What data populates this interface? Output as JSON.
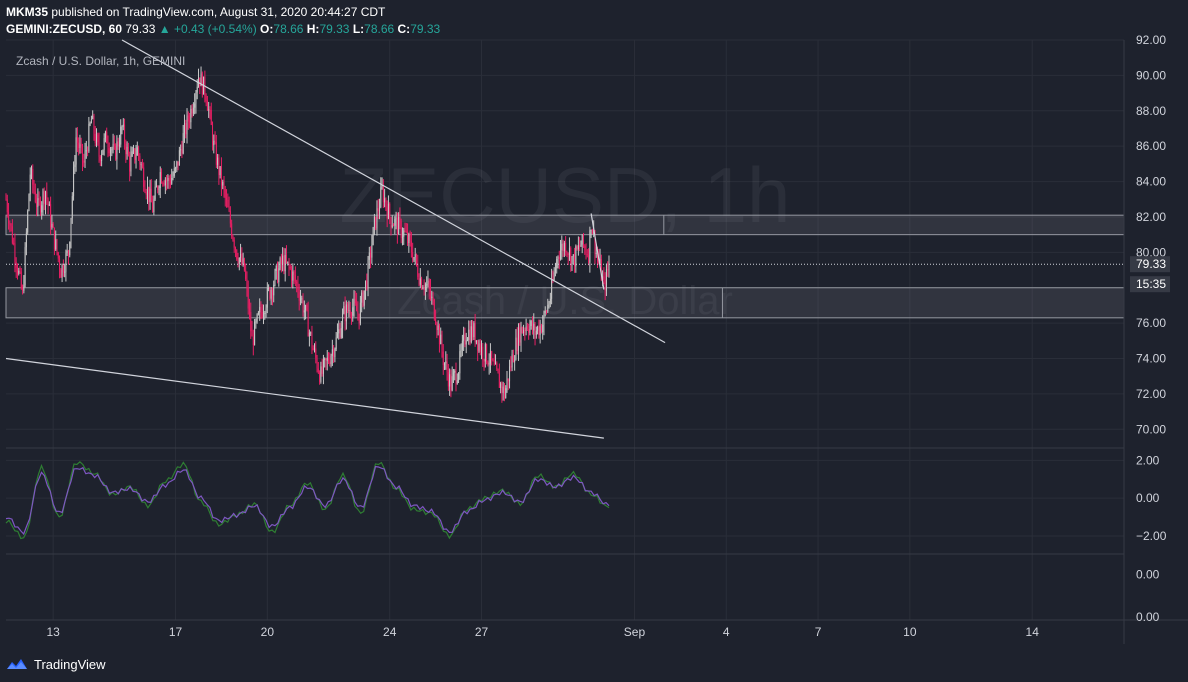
{
  "header": {
    "author": "MKM35",
    "published_text": "published on TradingView.com, August 31, 2020 20:44:27 CDT",
    "symbol": "GEMINI:ZECUSD, 60",
    "last": "79.33",
    "change": "+0.43 (+0.54%)",
    "open_label": "O:",
    "open": "78.66",
    "high_label": "H:",
    "high": "79.33",
    "low_label": "L:",
    "low": "78.66",
    "close_label": "C:",
    "close": "79.33"
  },
  "footer": {
    "brand": "TradingView"
  },
  "colors": {
    "background": "#1e222d",
    "grid": "#2a2e39",
    "up": "#26a69a",
    "down": "#ef5350",
    "candle_up": "#c8c8c8",
    "candle_down": "#e91e63",
    "trendline": "#d1d4dc",
    "stoch_k": "#2e7d32",
    "stoch_d": "#7e57c2"
  },
  "chart_data": [
    {
      "type": "candlestick",
      "title": "Zcash / U.S. Dollar, 1h, GEMINI",
      "watermark_symbol": "ZECUSD, 1h",
      "watermark_name": "Zcash / U.S. Dollar",
      "ylim": [
        69.0,
        92.0
      ],
      "y_ticks": [
        "92.00",
        "90.00",
        "88.00",
        "86.00",
        "84.00",
        "82.00",
        "80.00",
        "78.00",
        "76.00",
        "74.00",
        "72.00",
        "70.00"
      ],
      "x_ticks": [
        "13",
        "17",
        "20",
        "24",
        "27",
        "Sep",
        "4",
        "7",
        "10",
        "14"
      ],
      "x_range": [
        "Aug 11 11:00",
        "Sep 17 00:00"
      ],
      "last_price_label": "79.33",
      "countdown_label": "15:35",
      "grid": true,
      "resistance_zone": [
        81.0,
        82.1
      ],
      "support_zone": [
        76.3,
        78.0
      ],
      "trendlines": [
        {
          "from": [
            "Aug 15 06:00",
            92.0
          ],
          "to": [
            "Sep 02 00:00",
            74.9
          ]
        },
        {
          "from": [
            "Aug 11 11:00",
            74.0
          ],
          "to": [
            "Aug 31 00:00",
            69.5
          ]
        },
        {
          "from": [
            "Aug 30 14:00",
            82.2
          ],
          "to": [
            "Aug 31 00:00",
            77.9
          ]
        }
      ],
      "price_path": [
        [
          "Aug 11 11:00",
          83.0
        ],
        [
          "Aug 11 18:00",
          80.0
        ],
        [
          "Aug 12 00:00",
          77.5
        ],
        [
          "Aug 12 06:00",
          84.5
        ],
        [
          "Aug 12 12:00",
          82.5
        ],
        [
          "Aug 12 18:00",
          83.5
        ],
        [
          "Aug 13 00:00",
          81.0
        ],
        [
          "Aug 13 06:00",
          79.0
        ],
        [
          "Aug 13 12:00",
          80.0
        ],
        [
          "Aug 13 18:00",
          86.5
        ],
        [
          "Aug 14 00:00",
          85.0
        ],
        [
          "Aug 14 06:00",
          87.5
        ],
        [
          "Aug 14 12:00",
          85.5
        ],
        [
          "Aug 14 18:00",
          86.5
        ],
        [
          "Aug 15 00:00",
          85.5
        ],
        [
          "Aug 15 06:00",
          87.0
        ],
        [
          "Aug 15 12:00",
          85.0
        ],
        [
          "Aug 15 18:00",
          85.8
        ],
        [
          "Aug 16 00:00",
          84.0
        ],
        [
          "Aug 16 06:00",
          82.5
        ],
        [
          "Aug 16 12:00",
          84.5
        ],
        [
          "Aug 16 18:00",
          84.0
        ],
        [
          "Aug 17 00:00",
          84.5
        ],
        [
          "Aug 17 06:00",
          86.5
        ],
        [
          "Aug 17 12:00",
          88.0
        ],
        [
          "Aug 17 18:00",
          90.0
        ],
        [
          "Aug 18 00:00",
          89.0
        ],
        [
          "Aug 18 06:00",
          86.0
        ],
        [
          "Aug 18 12:00",
          84.0
        ],
        [
          "Aug 18 18:00",
          82.0
        ],
        [
          "Aug 19 00:00",
          80.0
        ],
        [
          "Aug 19 06:00",
          79.0
        ],
        [
          "Aug 19 12:00",
          75.0
        ],
        [
          "Aug 19 18:00",
          76.5
        ],
        [
          "Aug 20 00:00",
          77.5
        ],
        [
          "Aug 20 06:00",
          78.5
        ],
        [
          "Aug 20 12:00",
          79.5
        ],
        [
          "Aug 20 18:00",
          79.0
        ],
        [
          "Aug 21 00:00",
          78.0
        ],
        [
          "Aug 21 06:00",
          76.5
        ],
        [
          "Aug 21 12:00",
          74.5
        ],
        [
          "Aug 21 18:00",
          73.0
        ],
        [
          "Aug 22 00:00",
          74.0
        ],
        [
          "Aug 22 06:00",
          75.0
        ],
        [
          "Aug 22 12:00",
          76.5
        ],
        [
          "Aug 22 18:00",
          77.0
        ],
        [
          "Aug 23 00:00",
          76.5
        ],
        [
          "Aug 23 06:00",
          78.5
        ],
        [
          "Aug 23 12:00",
          81.5
        ],
        [
          "Aug 23 18:00",
          83.5
        ],
        [
          "Aug 24 00:00",
          82.0
        ],
        [
          "Aug 24 06:00",
          81.5
        ],
        [
          "Aug 24 12:00",
          81.0
        ],
        [
          "Aug 24 18:00",
          80.0
        ],
        [
          "Aug 25 00:00",
          78.5
        ],
        [
          "Aug 25 06:00",
          78.0
        ],
        [
          "Aug 25 12:00",
          76.5
        ],
        [
          "Aug 25 18:00",
          74.0
        ],
        [
          "Aug 26 00:00",
          72.5
        ],
        [
          "Aug 26 06:00",
          73.5
        ],
        [
          "Aug 26 12:00",
          75.5
        ],
        [
          "Aug 26 18:00",
          75.5
        ],
        [
          "Aug 27 00:00",
          74.5
        ],
        [
          "Aug 27 06:00",
          74.0
        ],
        [
          "Aug 27 12:00",
          73.0
        ],
        [
          "Aug 27 18:00",
          72.0
        ],
        [
          "Aug 28 00:00",
          74.0
        ],
        [
          "Aug 28 06:00",
          75.5
        ],
        [
          "Aug 28 12:00",
          76.0
        ],
        [
          "Aug 28 18:00",
          75.5
        ],
        [
          "Aug 29 00:00",
          76.0
        ],
        [
          "Aug 29 06:00",
          77.5
        ],
        [
          "Aug 29 12:00",
          80.0
        ],
        [
          "Aug 29 18:00",
          80.5
        ],
        [
          "Aug 30 00:00",
          79.5
        ],
        [
          "Aug 30 06:00",
          80.5
        ],
        [
          "Aug 30 12:00",
          80.0
        ],
        [
          "Aug 30 14:00",
          81.8
        ],
        [
          "Aug 30 18:00",
          80.0
        ],
        [
          "Aug 30 22:00",
          78.8
        ],
        [
          "Aug 31 00:00",
          78.0
        ],
        [
          "Aug 31 02:00",
          78.6
        ],
        [
          "Aug 31 04:00",
          79.33
        ]
      ]
    },
    {
      "type": "line",
      "title": "",
      "ylim": [
        -2.9,
        2.6
      ],
      "y_ticks": [
        "2.00",
        "0.00",
        "−2.00"
      ],
      "series": [
        {
          "name": "",
          "color_key": "stoch_k",
          "values": [
            -1.2,
            -2.1,
            1.6,
            -1.0,
            1.9,
            1.3,
            0.2,
            0.6,
            -0.4,
            0.9,
            1.8,
            -0.2,
            -1.4,
            -0.9,
            -0.3,
            -1.8,
            -0.4,
            0.8,
            -0.6,
            1.2,
            -0.8,
            1.9,
            0.5,
            -0.6,
            -0.8,
            -2.0,
            -0.6,
            0.0,
            0.4,
            -0.3,
            1.2,
            0.6,
            1.3,
            0.2,
            -0.5
          ]
        },
        {
          "name": "",
          "color_key": "stoch_d",
          "values": [
            -1.0,
            -1.8,
            1.3,
            -0.8,
            1.6,
            1.2,
            0.3,
            0.5,
            -0.2,
            0.7,
            1.5,
            0.0,
            -1.2,
            -0.9,
            -0.4,
            -1.5,
            -0.5,
            0.6,
            -0.4,
            1.0,
            -0.5,
            1.7,
            0.6,
            -0.4,
            -0.7,
            -1.8,
            -0.7,
            -0.1,
            0.3,
            -0.2,
            1.0,
            0.6,
            1.1,
            0.3,
            -0.4
          ]
        }
      ]
    },
    {
      "type": "line",
      "title": "",
      "ylim": [
        0.0,
        1.0
      ],
      "y_ticks": [
        "0.00",
        "0.00"
      ],
      "series": []
    }
  ]
}
